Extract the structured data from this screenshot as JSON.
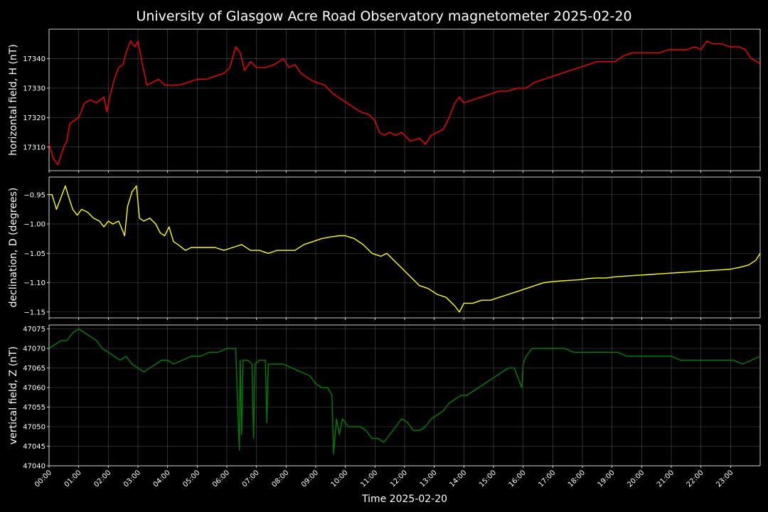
{
  "chart_data": {
    "type": "line",
    "title": "University of Glasgow Acre Road Observatory magnetometer 2025-02-20",
    "xlabel": "Time 2025-02-20",
    "x_unit": "hours since 00:00 on 2025-02-20",
    "x_ticks": [
      "00:00",
      "01:00",
      "02:00",
      "03:00",
      "04:00",
      "05:00",
      "06:00",
      "07:00",
      "08:00",
      "09:00",
      "10:00",
      "11:00",
      "12:00",
      "13:00",
      "14:00",
      "15:00",
      "16:00",
      "17:00",
      "18:00",
      "19:00",
      "20:00",
      "21:00",
      "22:00",
      "23:00"
    ],
    "xlim": [
      0,
      24
    ],
    "grid": true,
    "panels": [
      {
        "ylabel": "horizontal field, H (nT)",
        "color": "#ff0000",
        "ylim": [
          17302,
          17350
        ],
        "yticks": [
          "17310",
          "17320",
          "17330",
          "17340"
        ],
        "ytick_values": [
          17310,
          17320,
          17330,
          17340
        ],
        "x": [
          0,
          0.15,
          0.3,
          0.5,
          0.6,
          0.7,
          0.85,
          1.0,
          1.2,
          1.4,
          1.6,
          1.85,
          1.95,
          2.05,
          2.2,
          2.35,
          2.5,
          2.6,
          2.75,
          2.9,
          3.0,
          3.15,
          3.3,
          3.5,
          3.7,
          3.9,
          4.1,
          4.4,
          4.7,
          5.0,
          5.3,
          5.6,
          5.9,
          6.1,
          6.3,
          6.45,
          6.6,
          6.8,
          7.0,
          7.3,
          7.6,
          7.9,
          8.1,
          8.3,
          8.5,
          8.8,
          9.0,
          9.3,
          9.6,
          9.9,
          10.2,
          10.5,
          10.8,
          11.0,
          11.15,
          11.3,
          11.5,
          11.7,
          11.9,
          12.2,
          12.5,
          12.7,
          12.9,
          13.1,
          13.3,
          13.5,
          13.7,
          13.85,
          14.0,
          14.3,
          14.6,
          14.9,
          15.2,
          15.5,
          15.8,
          16.1,
          16.4,
          16.7,
          17.0,
          17.3,
          17.6,
          17.9,
          18.2,
          18.5,
          18.8,
          19.1,
          19.4,
          19.7,
          20.0,
          20.3,
          20.6,
          20.9,
          21.2,
          21.5,
          21.8,
          22.0,
          22.2,
          22.4,
          22.7,
          23.0,
          23.3,
          23.5,
          23.7,
          23.9,
          24.0
        ],
        "y": [
          17311,
          17306,
          17304,
          17310,
          17312,
          17318,
          17319,
          17320,
          17325,
          17326,
          17325,
          17327,
          17322,
          17327,
          17333,
          17337,
          17338,
          17342,
          17346,
          17344,
          17346,
          17338,
          17331,
          17332,
          17333,
          17331,
          17331,
          17331,
          17332,
          17333,
          17333,
          17334,
          17335,
          17337,
          17344,
          17342,
          17336,
          17339,
          17337,
          17337,
          17338,
          17340,
          17337,
          17338,
          17335,
          17333,
          17332,
          17331,
          17328,
          17326,
          17324,
          17322,
          17321,
          17319,
          17315,
          17314,
          17315,
          17314,
          17315,
          17312,
          17313,
          17311,
          17314,
          17315,
          17316,
          17320,
          17325,
          17327,
          17325,
          17326,
          17327,
          17328,
          17329,
          17329,
          17330,
          17330,
          17332,
          17333,
          17334,
          17335,
          17336,
          17337,
          17338,
          17339,
          17339,
          17339,
          17341,
          17342,
          17342,
          17342,
          17342,
          17343,
          17343,
          17343,
          17344,
          17343,
          17346,
          17345,
          17345,
          17344,
          17344,
          17343,
          17340,
          17339,
          17338
        ]
      },
      {
        "ylabel": "declination, D (degrees)",
        "color": "#ffff00",
        "ylim": [
          -1.16,
          -0.92
        ],
        "yticks": [
          "−0.95",
          "−1.00",
          "−1.05",
          "−1.10",
          "−1.15"
        ],
        "ytick_values": [
          -0.95,
          -1.0,
          -1.05,
          -1.1,
          -1.15
        ],
        "x": [
          0,
          0.1,
          0.25,
          0.4,
          0.55,
          0.7,
          0.8,
          0.95,
          1.1,
          1.3,
          1.5,
          1.7,
          1.85,
          2.0,
          2.15,
          2.35,
          2.55,
          2.65,
          2.8,
          2.95,
          3.05,
          3.2,
          3.4,
          3.6,
          3.75,
          3.9,
          4.05,
          4.2,
          4.35,
          4.6,
          4.8,
          5.0,
          5.3,
          5.6,
          5.9,
          6.2,
          6.5,
          6.8,
          7.1,
          7.4,
          7.7,
          8.0,
          8.3,
          8.6,
          8.9,
          9.2,
          9.5,
          9.8,
          10.0,
          10.3,
          10.6,
          10.9,
          11.2,
          11.4,
          11.6,
          11.8,
          12.0,
          12.2,
          12.5,
          12.8,
          13.1,
          13.4,
          13.7,
          13.85,
          14.0,
          14.3,
          14.6,
          14.9,
          15.2,
          15.5,
          15.8,
          16.1,
          16.4,
          16.7,
          17.0,
          17.3,
          17.6,
          17.9,
          18.2,
          18.5,
          18.8,
          19.1,
          19.4,
          19.7,
          20.0,
          20.3,
          20.6,
          20.9,
          21.2,
          21.5,
          21.8,
          22.1,
          22.4,
          22.7,
          23.0,
          23.3,
          23.6,
          23.85,
          24.0
        ],
        "y": [
          -0.95,
          -0.95,
          -0.975,
          -0.955,
          -0.935,
          -0.96,
          -0.975,
          -0.985,
          -0.975,
          -0.98,
          -0.99,
          -0.995,
          -1.005,
          -0.995,
          -1.0,
          -0.995,
          -1.02,
          -0.97,
          -0.945,
          -0.935,
          -0.99,
          -0.995,
          -0.99,
          -1.0,
          -1.015,
          -1.02,
          -1.005,
          -1.03,
          -1.035,
          -1.045,
          -1.04,
          -1.04,
          -1.04,
          -1.04,
          -1.045,
          -1.04,
          -1.035,
          -1.045,
          -1.045,
          -1.05,
          -1.045,
          -1.045,
          -1.045,
          -1.035,
          -1.03,
          -1.025,
          -1.022,
          -1.02,
          -1.02,
          -1.025,
          -1.035,
          -1.05,
          -1.055,
          -1.05,
          -1.06,
          -1.07,
          -1.08,
          -1.09,
          -1.105,
          -1.11,
          -1.12,
          -1.125,
          -1.14,
          -1.15,
          -1.135,
          -1.135,
          -1.13,
          -1.13,
          -1.125,
          -1.12,
          -1.115,
          -1.11,
          -1.105,
          -1.1,
          -1.098,
          -1.097,
          -1.096,
          -1.095,
          -1.093,
          -1.092,
          -1.092,
          -1.09,
          -1.089,
          -1.088,
          -1.087,
          -1.086,
          -1.085,
          -1.084,
          -1.083,
          -1.082,
          -1.081,
          -1.08,
          -1.079,
          -1.078,
          -1.077,
          -1.074,
          -1.07,
          -1.062,
          -1.05
        ]
      },
      {
        "ylabel": "vertical field, Z (nT)",
        "color": "#008000",
        "ylim": [
          47040,
          47076
        ],
        "yticks": [
          "47040",
          "47045",
          "47050",
          "47055",
          "47060",
          "47065",
          "47070",
          "47075"
        ],
        "ytick_values": [
          47040,
          47045,
          47050,
          47055,
          47060,
          47065,
          47070,
          47075
        ],
        "x": [
          0,
          0.2,
          0.4,
          0.6,
          0.8,
          1.0,
          1.2,
          1.4,
          1.6,
          1.8,
          2.0,
          2.2,
          2.4,
          2.6,
          2.8,
          3.0,
          3.2,
          3.4,
          3.6,
          3.8,
          4.0,
          4.2,
          4.5,
          4.8,
          5.1,
          5.4,
          5.7,
          6.0,
          6.3,
          6.42,
          6.45,
          6.5,
          6.55,
          6.7,
          6.85,
          6.9,
          6.95,
          7.1,
          7.3,
          7.35,
          7.4,
          7.6,
          7.9,
          8.2,
          8.5,
          8.8,
          9.0,
          9.2,
          9.4,
          9.55,
          9.6,
          9.7,
          9.8,
          9.9,
          10.1,
          10.3,
          10.5,
          10.7,
          10.9,
          11.1,
          11.3,
          11.5,
          11.7,
          11.9,
          12.1,
          12.3,
          12.5,
          12.7,
          12.9,
          13.1,
          13.3,
          13.5,
          13.7,
          13.9,
          14.1,
          14.3,
          14.5,
          14.7,
          14.9,
          15.1,
          15.3,
          15.5,
          15.7,
          15.95,
          16.0,
          16.1,
          16.3,
          16.5,
          16.8,
          17.1,
          17.4,
          17.7,
          18.0,
          18.3,
          18.6,
          18.9,
          19.2,
          19.5,
          19.8,
          20.1,
          20.4,
          20.7,
          21.0,
          21.3,
          21.6,
          21.9,
          22.2,
          22.5,
          22.8,
          23.1,
          23.4,
          23.7,
          24.0
        ],
        "y": [
          47070,
          47071,
          47072,
          47072,
          47074,
          47075,
          47074,
          47073,
          47072,
          47070,
          47069,
          47068,
          47067,
          47068,
          47066,
          47065,
          47064,
          47065,
          47066,
          47067,
          47067,
          47066,
          47067,
          47068,
          47068,
          47069,
          47069,
          47070,
          47070,
          47044,
          47067,
          47048,
          47067,
          47067,
          47066,
          47047,
          47066,
          47067,
          47067,
          47051,
          47066,
          47066,
          47066,
          47065,
          47064,
          47063,
          47061,
          47060,
          47060,
          47058,
          47043,
          47052,
          47048,
          47052,
          47050,
          47050,
          47050,
          47049,
          47047,
          47047,
          47046,
          47048,
          47050,
          47052,
          47051,
          47049,
          47049,
          47050,
          47052,
          47053,
          47054,
          47056,
          47057,
          47058,
          47058,
          47059,
          47060,
          47061,
          47062,
          47063,
          47064,
          47065,
          47065,
          47060,
          47066,
          47068,
          47070,
          47070,
          47070,
          47070,
          47070,
          47069,
          47069,
          47069,
          47069,
          47069,
          47069,
          47068,
          47068,
          47068,
          47068,
          47068,
          47068,
          47067,
          47067,
          47067,
          47067,
          47067,
          47067,
          47067,
          47066,
          47067,
          47068
        ]
      }
    ]
  }
}
